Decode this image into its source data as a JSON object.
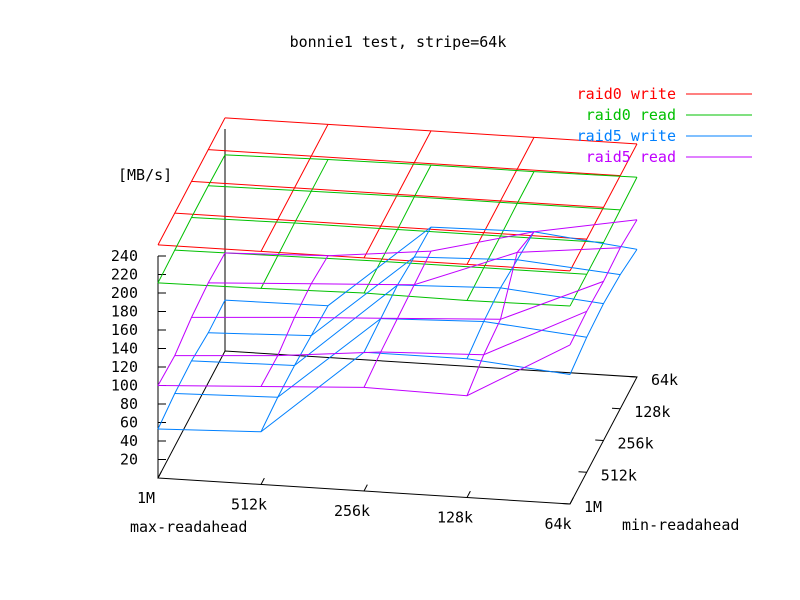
{
  "chart_data": {
    "type": "surface",
    "title": "bonnie1 test, stripe=64k",
    "zlabel": "[MB/s]",
    "xlabel": "max-readahead",
    "ylabel": "min-readahead",
    "x_ticks": [
      "1M",
      "512k",
      "256k",
      "128k",
      "64k"
    ],
    "y_ticks": [
      "1M",
      "512k",
      "256k",
      "128k",
      "64k"
    ],
    "z_ticks": [
      "20",
      "40",
      "60",
      "80",
      "100",
      "120",
      "140",
      "160",
      "180",
      "200",
      "220",
      "240"
    ],
    "zlim": [
      0,
      240
    ],
    "legend_position": "top-right",
    "series": [
      {
        "name": "raid0 write",
        "color": "#ff0000",
        "values": [
          [
            252,
            252,
            252,
            252,
            252
          ],
          [
            252,
            252,
            252,
            252,
            252
          ],
          [
            252,
            252,
            252,
            252,
            252
          ],
          [
            252,
            252,
            252,
            252,
            252
          ],
          [
            252,
            252,
            252,
            252,
            252
          ]
        ]
      },
      {
        "name": "raid0 read",
        "color": "#00c000",
        "values": [
          [
            211,
            212,
            214,
            213,
            214
          ],
          [
            212,
            213,
            214,
            214,
            214
          ],
          [
            213,
            214,
            214,
            214,
            214
          ],
          [
            213,
            214,
            215,
            215,
            215
          ],
          [
            212,
            214,
            215,
            215,
            216
          ]
        ]
      },
      {
        "name": "raid5 write",
        "color": "#0080ff",
        "values": [
          [
            53,
            57,
            150,
            150,
            140
          ],
          [
            57,
            60,
            152,
            156,
            146
          ],
          [
            58,
            60,
            154,
            158,
            148
          ],
          [
            54,
            58,
            150,
            154,
            145
          ],
          [
            55,
            56,
            148,
            150,
            138
          ]
        ]
      },
      {
        "name": "raid5 read",
        "color": "#c000ff",
        "values": [
          [
            100,
            106,
            112,
            110,
            172
          ],
          [
            98,
            105,
            116,
            120,
            174
          ],
          [
            105,
            112,
            118,
            124,
            172
          ],
          [
            108,
            114,
            120,
            162,
            174
          ],
          [
            106,
            110,
            122,
            150,
            170
          ]
        ]
      }
    ]
  }
}
